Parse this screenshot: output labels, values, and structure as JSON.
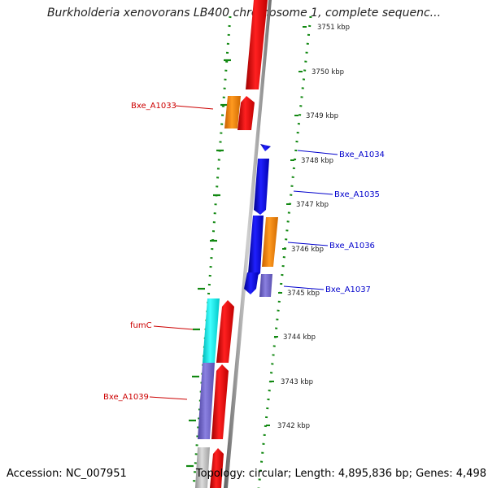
{
  "title": "Burkholderia xenovorans LB400 chromosome 1, complete sequenc...",
  "footer": {
    "accession": "Accession: NC_007951",
    "topology": "Topology: circular; Length: 4,895,836 bp; Genes: 4,498"
  },
  "colors": {
    "red": "#ee0000",
    "orange": "#ff8800",
    "blue": "#0000dd",
    "purple": "#6f63cc",
    "cyan": "#00eeee",
    "gray": "#b8b8b8",
    "ticks": "#118811",
    "left_label": "#cc0000",
    "right_label": "#0000cc"
  },
  "kbp_ticks": [
    "3751 kbp",
    "3750 kbp",
    "3749 kbp",
    "3748 kbp",
    "3747 kbp",
    "3746 kbp",
    "3745 kbp",
    "3744 kbp",
    "3743 kbp",
    "3742 kbp"
  ],
  "gene_labels": [
    "Bxe_A1033",
    "Bxe_A1034",
    "Bxe_A1035",
    "Bxe_A1036",
    "Bxe_A1037",
    "fumC",
    "Bxe_A1039"
  ]
}
